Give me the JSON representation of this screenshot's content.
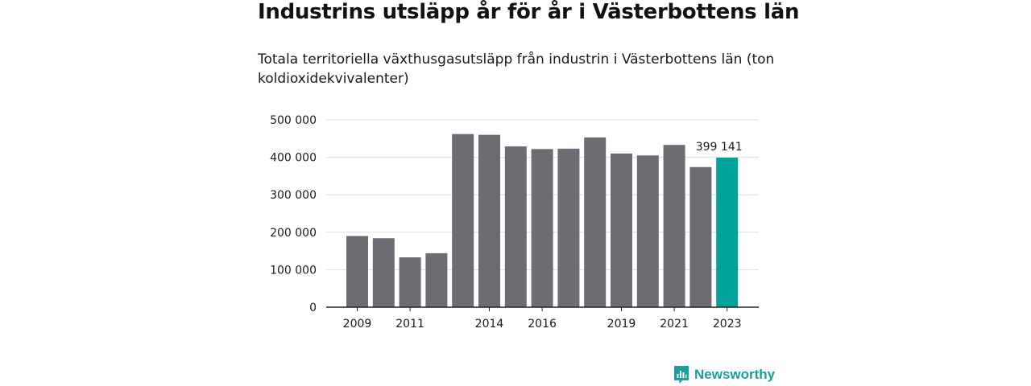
{
  "title": "Industrins utsläpp år för år i Västerbottens län",
  "subtitle": "Totala territoriella växthusgasutsläpp från industrin i Västerbottens län (ton koldioxidekvivalenter)",
  "brand": {
    "name": "Newsworthy",
    "icon": "newsworthy-logo-icon"
  },
  "colors": {
    "bar": "#6d6c72",
    "highlight": "#00a39a",
    "grid": "#dddddd",
    "axis": "#222222",
    "text": "#1a1a1a",
    "brand": "#1c9e9a"
  },
  "chart_data": {
    "type": "bar",
    "title": "",
    "xlabel": "",
    "ylabel": "",
    "categories": [
      "2009",
      "2010",
      "2011",
      "2012",
      "2013",
      "2014",
      "2015",
      "2016",
      "2017",
      "2018",
      "2019",
      "2020",
      "2021",
      "2022",
      "2023"
    ],
    "values": [
      190000,
      184000,
      133000,
      144000,
      462000,
      460000,
      429000,
      422000,
      423000,
      453000,
      410000,
      405000,
      433000,
      374000,
      399141
    ],
    "highlight_index": 14,
    "data_labels": [
      {
        "category": "2023",
        "text": "399 141"
      }
    ],
    "x_tick_labels": [
      "2009",
      "2011",
      "2014",
      "2016",
      "2019",
      "2021",
      "2023"
    ],
    "y_ticks": [
      {
        "value": 0,
        "label": "0"
      },
      {
        "value": 100000,
        "label": "100 000"
      },
      {
        "value": 200000,
        "label": "200 000"
      },
      {
        "value": 300000,
        "label": "300 000"
      },
      {
        "value": 400000,
        "label": "400 000"
      },
      {
        "value": 500000,
        "label": "500 000"
      }
    ],
    "ylim": [
      0,
      500000
    ],
    "grid": true,
    "legend": "none"
  }
}
